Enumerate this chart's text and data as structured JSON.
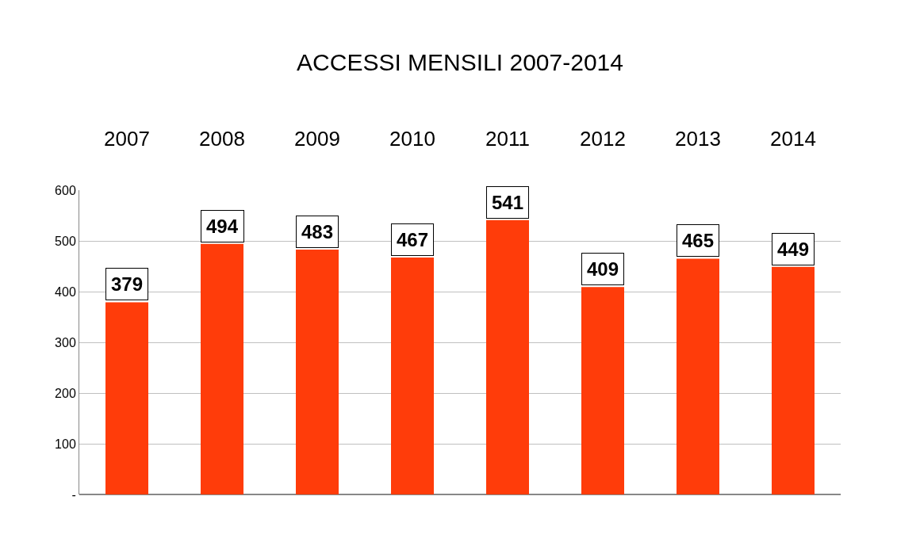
{
  "chart_data": {
    "type": "bar",
    "title": "ACCESSI MENSILI 2007-2014",
    "categories": [
      "2007",
      "2008",
      "2009",
      "2010",
      "2011",
      "2012",
      "2013",
      "2014"
    ],
    "values": [
      379,
      494,
      483,
      467,
      541,
      409,
      465,
      449
    ],
    "color": "#ff3c0a",
    "ylim": [
      0,
      600
    ],
    "yticks": [
      {
        "value": 0,
        "label": "-"
      },
      100,
      200,
      300,
      400,
      500,
      600
    ],
    "grid": "y",
    "data_labels": true
  }
}
